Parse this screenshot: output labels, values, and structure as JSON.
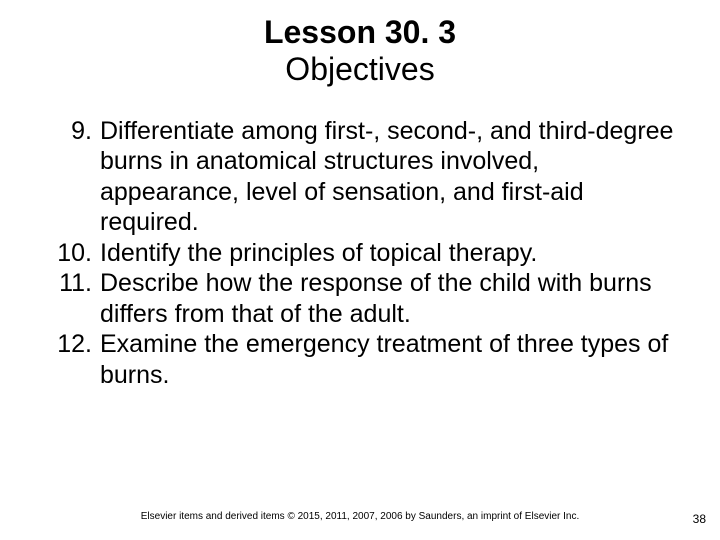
{
  "title": {
    "line1": "Lesson 30. 3",
    "line2": "Objectives"
  },
  "objectives": {
    "start_number": 9,
    "items": [
      "Differentiate among first-, second-, and third-degree burns in anatomical structures involved, appearance, level of sensation, and first-aid required.",
      "Identify the principles of topical therapy.",
      "Describe how the response of the child with burns differs from that of the adult.",
      "Examine the emergency treatment of three types of burns."
    ]
  },
  "footer": "Elsevier items and derived items © 2015, 2011, 2007, 2006 by Saunders, an imprint of Elsevier Inc.",
  "page_number": "38",
  "style": {
    "background_color": "#ffffff",
    "text_color": "#000000",
    "title_fontsize_pt": 32,
    "title_line1_weight": 700,
    "title_line2_weight": 400,
    "body_fontsize_pt": 25,
    "footer_fontsize_pt": 10,
    "page_number_fontsize_pt": 12,
    "font_family": "Arial"
  }
}
